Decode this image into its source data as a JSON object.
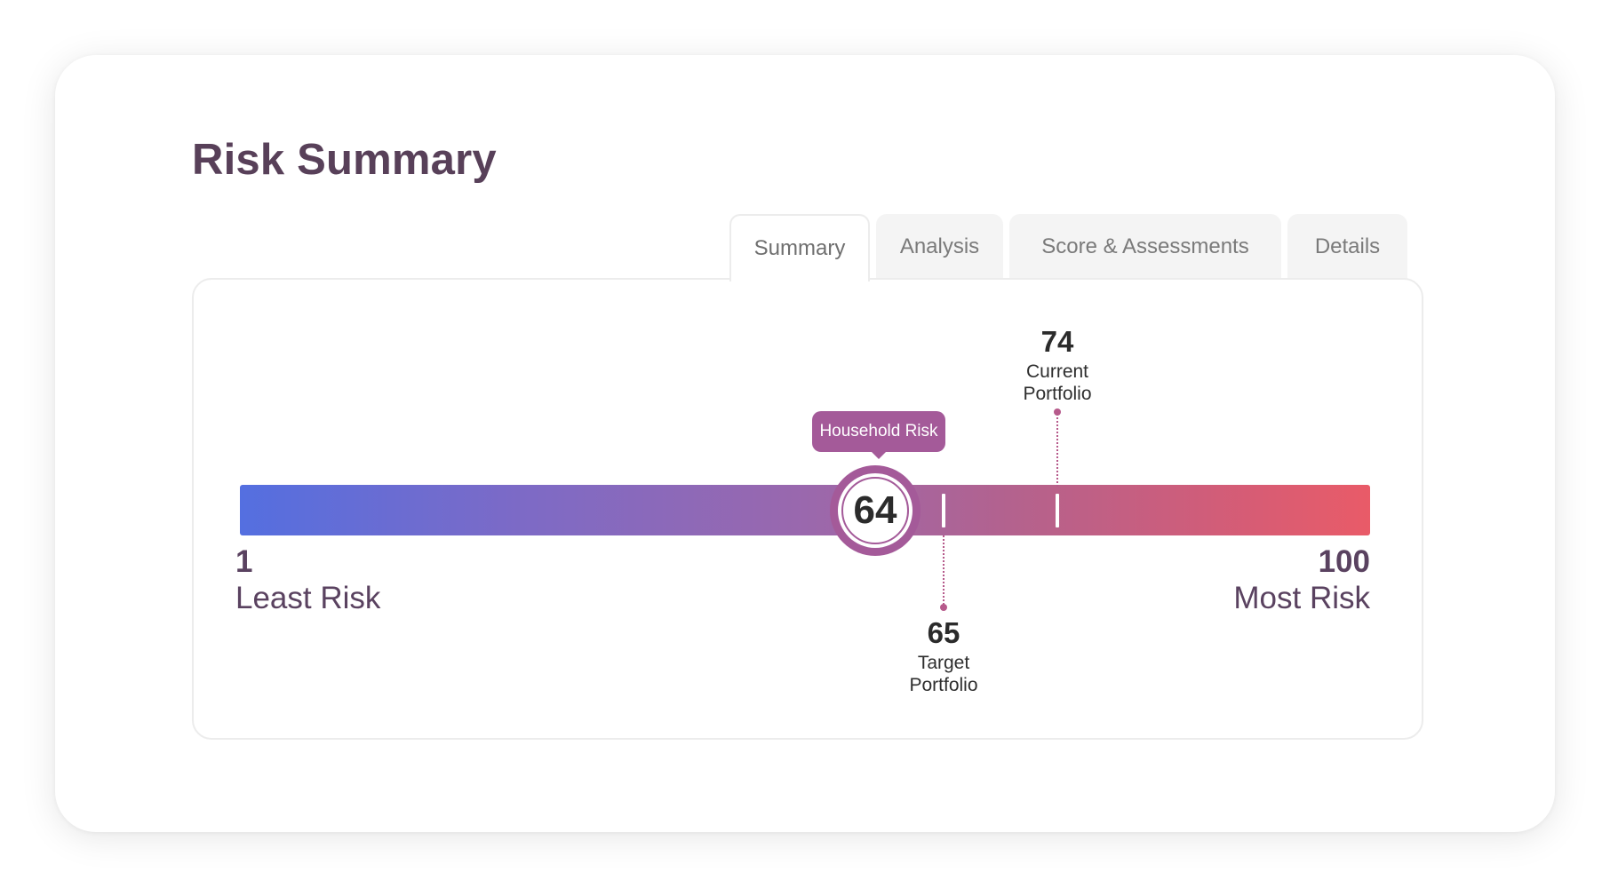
{
  "page": {
    "title": "Risk Summary"
  },
  "tabs": [
    {
      "label": "Summary",
      "active": true
    },
    {
      "label": "Analysis",
      "active": false
    },
    {
      "label": "Score & Assessments",
      "active": false
    },
    {
      "label": "Details",
      "active": false
    }
  ],
  "risk_scale": {
    "min": 1,
    "max": 100,
    "min_value_label": "1",
    "max_value_label": "100",
    "min_label": "Least Risk",
    "max_label": "Most Risk",
    "gradient_colors": [
      "#546fe0",
      "#9a68ad",
      "#e95b68"
    ]
  },
  "household_risk": {
    "value": 64,
    "value_label": "64",
    "tooltip": "Household Risk",
    "color": "#a45a99"
  },
  "target_portfolio": {
    "value": 65,
    "value_label": "65",
    "label_line1": "Target",
    "label_line2": "Portfolio"
  },
  "current_portfolio": {
    "value": 74,
    "value_label": "74",
    "label_line1": "Current",
    "label_line2": "Portfolio"
  }
}
